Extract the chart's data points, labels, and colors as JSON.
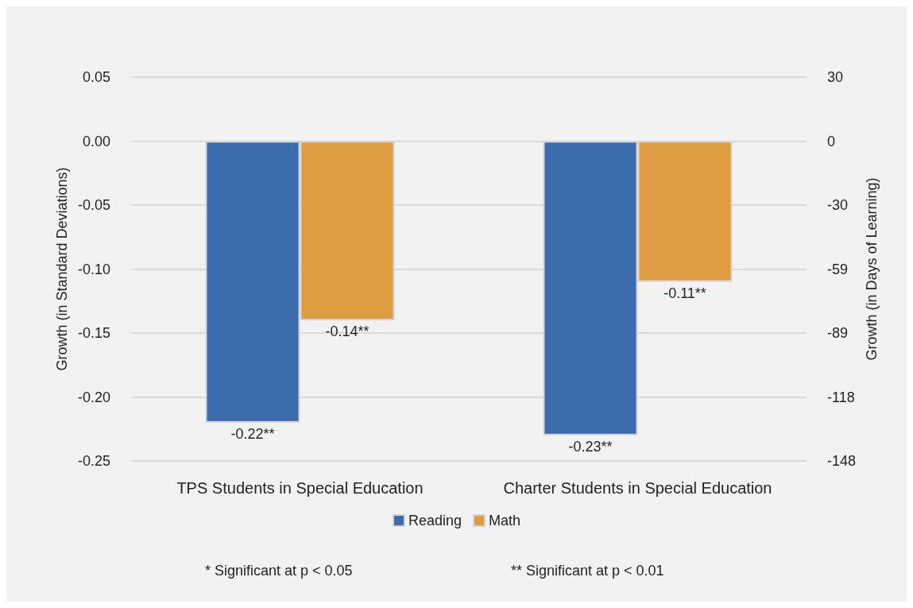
{
  "chart_data": {
    "type": "bar",
    "ylabel": "Growth (in Standard Deviations)",
    "y2label": "Growth (in Days of Learning)",
    "categories": [
      "TPS Students in Special Education",
      "Charter Students in Special Education"
    ],
    "series": [
      {
        "name": "Reading",
        "color": "#3b6aad",
        "values": [
          -0.22,
          -0.23
        ],
        "value_labels": [
          "-0.22**",
          "-0.23**"
        ]
      },
      {
        "name": "Math",
        "color": "#e09c41",
        "values": [
          -0.14,
          -0.11
        ],
        "value_labels": [
          "-0.14**",
          "-0.11**"
        ]
      }
    ],
    "ylim": [
      -0.25,
      0.05
    ],
    "yticks": [
      {
        "value": -0.25,
        "label": "-0.25"
      },
      {
        "value": -0.2,
        "label": "-0.20"
      },
      {
        "value": -0.15,
        "label": "-0.15"
      },
      {
        "value": -0.1,
        "label": "-0.10"
      },
      {
        "value": -0.05,
        "label": "-0.05"
      },
      {
        "value": 0,
        "label": "0.00"
      },
      {
        "value": 0.05,
        "label": "0.05"
      }
    ],
    "y2lim": [
      -148,
      29.6
    ],
    "y2ticks": [
      {
        "value": -148,
        "label": "-148"
      },
      {
        "value": -118.4,
        "label": "-118"
      },
      {
        "value": -88.8,
        "label": "-89"
      },
      {
        "value": -59.2,
        "label": "-59"
      },
      {
        "value": -29.6,
        "label": "-30"
      },
      {
        "value": 0,
        "label": "0"
      },
      {
        "value": 29.6,
        "label": "30"
      }
    ],
    "grid": "y",
    "legend": "bottom",
    "annotations": [
      "* Significant at p < 0.05",
      "** Significant at p < 0.01"
    ]
  }
}
